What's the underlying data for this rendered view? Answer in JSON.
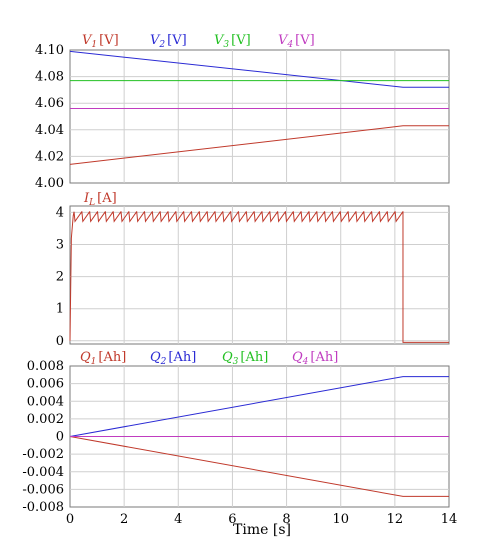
{
  "chart_data": [
    {
      "type": "line",
      "id": "voltage",
      "x": [
        0,
        12.3,
        14
      ],
      "xlim": [
        0,
        14
      ],
      "ylim": [
        4.0,
        4.1
      ],
      "yticks": [
        "4.00",
        "4.02",
        "4.04",
        "4.06",
        "4.08",
        "4.10"
      ],
      "ytick_values": [
        4.0,
        4.02,
        4.04,
        4.06,
        4.08,
        4.1
      ],
      "grid": true,
      "legend_placement": "top",
      "series": [
        {
          "name": "V1 [V]",
          "sym": "V",
          "sub": "1",
          "unit": "[V]",
          "color": "#c0392b",
          "values": [
            4.014,
            4.043,
            4.043
          ]
        },
        {
          "name": "V2 [V]",
          "sym": "V",
          "sub": "2",
          "unit": "[V]",
          "color": "#2a2ad4",
          "values": [
            4.099,
            4.072,
            4.072
          ]
        },
        {
          "name": "V3 [V]",
          "sym": "V",
          "sub": "3",
          "unit": "[V]",
          "color": "#22c022",
          "values": [
            4.077,
            4.077,
            4.077
          ]
        },
        {
          "name": "V4 [V]",
          "sym": "V",
          "sub": "4",
          "unit": "[V]",
          "color": "#c03cc0",
          "values": [
            4.056,
            4.056,
            4.056
          ]
        }
      ]
    },
    {
      "type": "line",
      "id": "current",
      "xlim": [
        0,
        14
      ],
      "ylim": [
        -0.1,
        4.2
      ],
      "yticks": [
        "0",
        "1",
        "2",
        "3",
        "4"
      ],
      "ytick_values": [
        0,
        1,
        2,
        3,
        4
      ],
      "grid": true,
      "legend_placement": "top-left",
      "series": [
        {
          "name": "IL [A]",
          "sym": "I",
          "sub": "L",
          "unit": "[A]",
          "color": "#c0392b",
          "x": [
            0,
            0.05,
            0.12,
            12.3,
            12.3,
            14
          ],
          "values": [
            0,
            3.2,
            3.9,
            3.9,
            -0.05,
            -0.05
          ],
          "ripple": {
            "from": 0.15,
            "to": 12.3,
            "low": 3.72,
            "high": 4.02,
            "cycles": 42
          }
        }
      ]
    },
    {
      "type": "line",
      "id": "charge",
      "x": [
        0,
        12.3,
        14
      ],
      "xlim": [
        0,
        14
      ],
      "ylim": [
        -0.008,
        0.008
      ],
      "xticks": [
        "0",
        "2",
        "4",
        "6",
        "8",
        "10",
        "12",
        "14"
      ],
      "xtick_values": [
        0,
        2,
        4,
        6,
        8,
        10,
        12,
        14
      ],
      "yticks": [
        "-0.008",
        "-0.006",
        "-0.004",
        "-0.002",
        "0",
        "0.002",
        "0.004",
        "0.006",
        "0.008"
      ],
      "ytick_values": [
        -0.008,
        -0.006,
        -0.004,
        -0.002,
        0,
        0.002,
        0.004,
        0.006,
        0.008
      ],
      "xlabel": "Time [s]",
      "grid": true,
      "legend_placement": "top",
      "series": [
        {
          "name": "Q1 [Ah]",
          "sym": "Q",
          "sub": "1",
          "unit": "[Ah]",
          "color": "#c0392b",
          "values": [
            0,
            -0.0068,
            -0.0068
          ]
        },
        {
          "name": "Q2 [Ah]",
          "sym": "Q",
          "sub": "2",
          "unit": "[Ah]",
          "color": "#2a2ad4",
          "values": [
            0,
            0.0068,
            0.0068
          ]
        },
        {
          "name": "Q3 [Ah]",
          "sym": "Q",
          "sub": "3",
          "unit": "[Ah]",
          "color": "#22c022",
          "values": [
            0,
            0,
            0
          ]
        },
        {
          "name": "Q4 [Ah]",
          "sym": "Q",
          "sub": "4",
          "unit": "[Ah]",
          "color": "#c03cc0",
          "values": [
            0,
            0,
            0
          ]
        }
      ]
    }
  ]
}
